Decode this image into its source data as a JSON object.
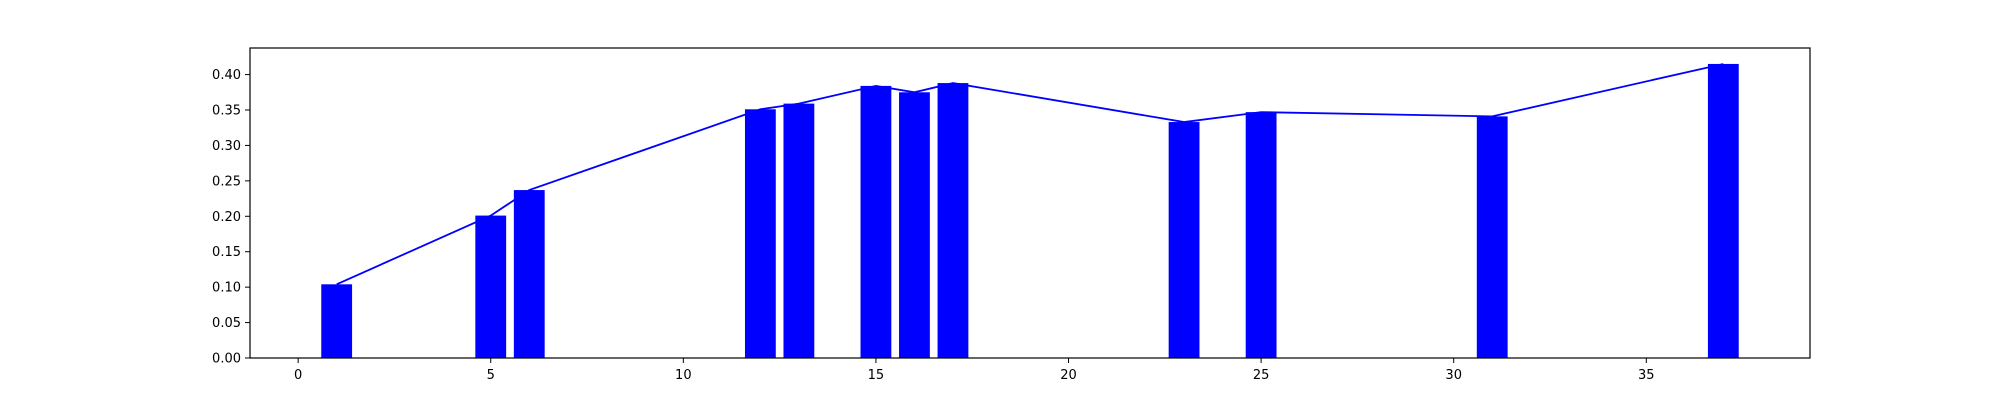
{
  "chart_data": {
    "type": "bar",
    "title": "",
    "xlabel": "",
    "ylabel": "",
    "xlim": [
      -1.25,
      39.25
    ],
    "ylim": [
      0.0,
      0.4375
    ],
    "grid": false,
    "x_ticks": [
      0,
      5,
      10,
      15,
      20,
      25,
      30,
      35
    ],
    "x_tick_labels": [
      "0",
      "5",
      "10",
      "15",
      "20",
      "25",
      "30",
      "35"
    ],
    "y_ticks": [
      0.0,
      0.05,
      0.1,
      0.15,
      0.2,
      0.25,
      0.3,
      0.35,
      0.4
    ],
    "y_tick_labels": [
      "0.00",
      "0.05",
      "0.10",
      "0.15",
      "0.20",
      "0.25",
      "0.30",
      "0.35",
      "0.40"
    ],
    "bar_width": 0.8,
    "series": [
      {
        "type": "bar",
        "color": "#0000ff",
        "x": [
          1,
          5,
          6,
          12,
          13,
          15,
          16,
          17,
          23,
          25,
          31,
          37
        ],
        "values": [
          0.104,
          0.201,
          0.237,
          0.351,
          0.359,
          0.384,
          0.375,
          0.388,
          0.333,
          0.347,
          0.341,
          0.415
        ]
      },
      {
        "type": "line",
        "color": "#0000ff",
        "x": [
          1,
          5,
          6,
          12,
          13,
          15,
          16,
          17,
          23,
          25,
          31,
          37
        ],
        "values": [
          0.104,
          0.201,
          0.237,
          0.351,
          0.359,
          0.384,
          0.375,
          0.388,
          0.333,
          0.347,
          0.341,
          0.415
        ]
      }
    ]
  }
}
